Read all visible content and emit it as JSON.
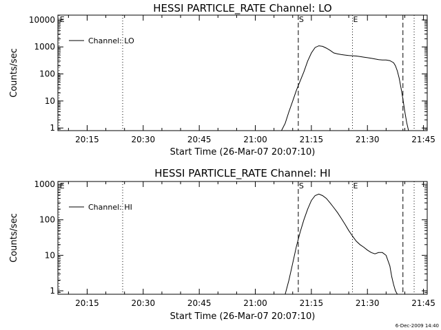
{
  "footer_stamp": "6-Dec-2009 14:40",
  "chart_data": [
    {
      "type": "line",
      "title": "HESSI PARTICLE_RATE Channel: LO",
      "xlabel": "Start Time (26-Mar-07 20:07:10)",
      "ylabel": "Counts/sec",
      "yscale": "log",
      "xlim": [
        "20:07:10",
        "21:46:00"
      ],
      "ylim": [
        0.8,
        15000
      ],
      "x_ticks": [
        "20:15",
        "20:30",
        "20:45",
        "21:00",
        "21:15",
        "21:30",
        "21:45"
      ],
      "y_ticks": [
        "1",
        "10",
        "100",
        "1000",
        "10000"
      ],
      "legend": {
        "label": "Channel: LO",
        "position": "top-left"
      },
      "markers": [
        {
          "label": "E",
          "time": "20:07:30",
          "style": "dotted"
        },
        {
          "label": "",
          "time": "20:24:30",
          "style": "dotted"
        },
        {
          "label": "S",
          "time": "21:11:30",
          "style": "dashed"
        },
        {
          "label": "E",
          "time": "21:26:00",
          "style": "dotted"
        },
        {
          "label": "",
          "time": "21:39:30",
          "style": "dashed"
        },
        {
          "label": "",
          "time": "21:42:30",
          "style": "dotted"
        }
      ],
      "series": [
        {
          "x": [
            "21:07:00",
            "21:08:00",
            "21:09:00",
            "21:10:00",
            "21:11:00",
            "21:12:00",
            "21:13:00",
            "21:14:00",
            "21:15:00",
            "21:16:00",
            "21:17:00",
            "21:18:00",
            "21:19:00",
            "21:20:00",
            "21:21:00",
            "21:22:00",
            "21:23:00",
            "21:24:00",
            "21:25:00",
            "21:26:00",
            "21:27:00",
            "21:28:00",
            "21:29:00",
            "21:30:00",
            "21:31:00",
            "21:32:00",
            "21:33:00",
            "21:34:00",
            "21:35:00",
            "21:36:00",
            "21:37:00",
            "21:37:30",
            "21:38:00",
            "21:38:30",
            "21:39:00",
            "21:39:30",
            "21:40:00",
            "21:40:30",
            "21:41:00"
          ],
          "values": [
            0.8,
            1.5,
            4,
            10,
            25,
            55,
            120,
            300,
            600,
            950,
            1100,
            1050,
            900,
            750,
            600,
            550,
            520,
            500,
            480,
            470,
            460,
            440,
            420,
            400,
            380,
            360,
            340,
            330,
            330,
            310,
            260,
            200,
            130,
            70,
            30,
            12,
            4,
            1.6,
            0.8
          ]
        }
      ]
    },
    {
      "type": "line",
      "title": "HESSI PARTICLE_RATE Channel: HI",
      "xlabel": "Start Time (26-Mar-07 20:07:10)",
      "ylabel": "Counts/sec",
      "yscale": "log",
      "xlim": [
        "20:07:10",
        "21:46:00"
      ],
      "ylim": [
        0.8,
        1200
      ],
      "x_ticks": [
        "20:15",
        "20:30",
        "20:45",
        "21:00",
        "21:15",
        "21:30",
        "21:45"
      ],
      "y_ticks": [
        "1",
        "10",
        "100",
        "1000"
      ],
      "legend": {
        "label": "Channel: HI",
        "position": "top-left"
      },
      "markers": [
        {
          "label": "E",
          "time": "20:07:30",
          "style": "dotted"
        },
        {
          "label": "",
          "time": "20:24:30",
          "style": "dotted"
        },
        {
          "label": "S",
          "time": "21:11:30",
          "style": "dashed"
        },
        {
          "label": "E",
          "time": "21:26:00",
          "style": "dotted"
        },
        {
          "label": "",
          "time": "21:39:30",
          "style": "dashed"
        },
        {
          "label": "",
          "time": "21:42:30",
          "style": "dotted"
        }
      ],
      "series": [
        {
          "x": [
            "21:08:00",
            "21:09:00",
            "21:10:00",
            "21:11:00",
            "21:12:00",
            "21:13:00",
            "21:14:00",
            "21:15:00",
            "21:16:00",
            "21:17:00",
            "21:18:00",
            "21:19:00",
            "21:20:00",
            "21:21:00",
            "21:22:00",
            "21:23:00",
            "21:24:00",
            "21:25:00",
            "21:26:00",
            "21:27:00",
            "21:28:00",
            "21:29:00",
            "21:30:00",
            "21:31:00",
            "21:32:00",
            "21:33:00",
            "21:34:00",
            "21:35:00",
            "21:36:00",
            "21:36:30",
            "21:37:00",
            "21:37:30",
            "21:38:00"
          ],
          "values": [
            0.8,
            2,
            6,
            18,
            45,
            100,
            200,
            350,
            480,
            530,
            480,
            400,
            300,
            220,
            160,
            110,
            75,
            50,
            35,
            25,
            20,
            17,
            14,
            12,
            11,
            12,
            12,
            10,
            5,
            2.5,
            1.5,
            1,
            0.8
          ]
        }
      ]
    }
  ]
}
